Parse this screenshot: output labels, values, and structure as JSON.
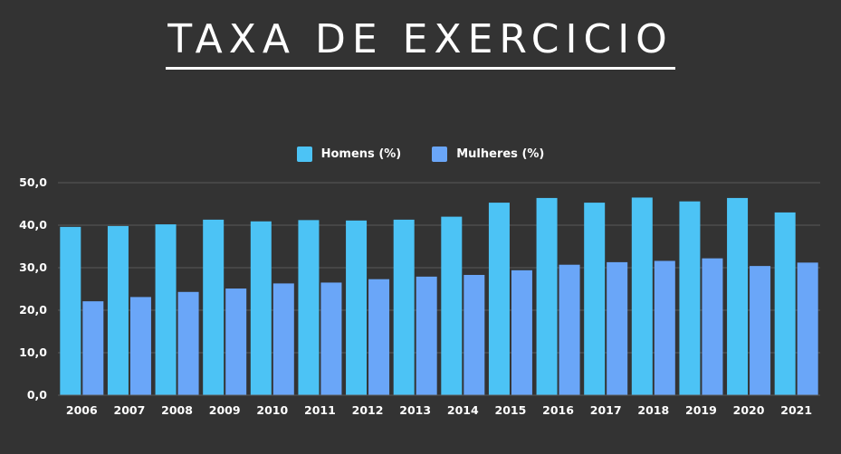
{
  "title": "TAXA DE EXERCICIO",
  "colors": {
    "background": "#333333",
    "homens": "#4cc3f5",
    "mulheres": "#6aa6f8",
    "grid": "#5a5a5a",
    "text": "#ffffff"
  },
  "legend": {
    "homens": "Homens (%)",
    "mulheres": "Mulheres (%)"
  },
  "chart_data": {
    "type": "bar",
    "title": "TAXA DE EXERCICIO",
    "xlabel": "",
    "ylabel": "",
    "ylim": [
      0,
      50
    ],
    "yticks": [
      "0,0",
      "10,0",
      "20,0",
      "30,0",
      "40,0",
      "50,0"
    ],
    "grid": true,
    "legend_position": "top-center",
    "categories": [
      "2006",
      "2007",
      "2008",
      "2009",
      "2010",
      "2011",
      "2012",
      "2013",
      "2014",
      "2015",
      "2016",
      "2017",
      "2018",
      "2019",
      "2020",
      "2021"
    ],
    "series": [
      {
        "name": "Homens (%)",
        "values": [
          39.6,
          39.8,
          40.2,
          41.3,
          40.9,
          41.2,
          41.1,
          41.3,
          42.0,
          45.3,
          46.4,
          45.3,
          46.5,
          45.6,
          46.4,
          43.0
        ]
      },
      {
        "name": "Mulheres (%)",
        "values": [
          22.1,
          23.1,
          24.3,
          25.1,
          26.3,
          26.5,
          27.3,
          27.9,
          28.3,
          29.4,
          30.7,
          31.3,
          31.6,
          32.2,
          30.4,
          31.2
        ]
      }
    ]
  }
}
